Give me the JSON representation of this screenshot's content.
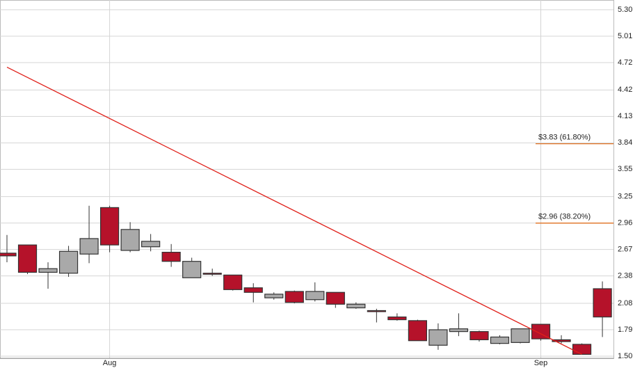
{
  "chart_data": {
    "type": "candlestick",
    "categories": [
      null,
      null,
      null,
      null,
      null,
      "Aug",
      null,
      null,
      null,
      null,
      null,
      null,
      null,
      null,
      null,
      null,
      null,
      null,
      null,
      null,
      null,
      null,
      null,
      null,
      null,
      null,
      "Sep",
      null,
      null,
      null
    ],
    "open": [
      2.63,
      2.72,
      2.42,
      2.41,
      2.62,
      3.13,
      2.66,
      2.7,
      2.64,
      2.36,
      2.41,
      2.39,
      2.25,
      2.14,
      2.21,
      2.12,
      2.2,
      2.03,
      2.0,
      1.93,
      1.89,
      1.62,
      1.77,
      1.77,
      1.64,
      1.65,
      1.85,
      1.68,
      1.63,
      2.24
    ],
    "high": [
      2.83,
      2.72,
      2.53,
      2.71,
      3.15,
      3.15,
      2.97,
      2.84,
      2.73,
      2.58,
      2.46,
      2.39,
      2.3,
      2.2,
      2.22,
      2.31,
      2.2,
      2.09,
      2.02,
      1.97,
      1.9,
      1.86,
      1.97,
      1.78,
      1.73,
      1.8,
      1.85,
      1.73,
      1.64,
      2.32
    ],
    "low": [
      2.53,
      2.4,
      2.24,
      2.37,
      2.52,
      2.64,
      2.64,
      2.65,
      2.48,
      2.36,
      2.38,
      2.22,
      2.09,
      2.12,
      2.08,
      2.1,
      2.03,
      2.02,
      1.87,
      1.89,
      1.67,
      1.57,
      1.72,
      1.66,
      1.63,
      1.64,
      1.67,
      1.64,
      1.52,
      1.71
    ],
    "close": [
      2.6,
      2.42,
      2.46,
      2.65,
      2.79,
      2.72,
      2.89,
      2.76,
      2.54,
      2.54,
      2.4,
      2.23,
      2.2,
      2.18,
      2.09,
      2.21,
      2.07,
      2.07,
      1.99,
      1.9,
      1.67,
      1.79,
      1.8,
      1.68,
      1.71,
      1.8,
      1.69,
      1.66,
      1.52,
      1.93
    ],
    "up_color": "#a9a9a9",
    "down_color": "#b5122a",
    "ylim": [
      1.5,
      5.3
    ],
    "yticks": [
      {
        "value": 5.3,
        "label": "5.30"
      },
      5.01,
      4.72,
      4.42,
      4.13,
      3.84,
      3.55,
      3.25,
      2.96,
      2.67,
      2.38,
      2.08,
      1.79,
      {
        "value": 1.5,
        "label": "1.50"
      }
    ],
    "grid": true,
    "trendline": {
      "start": 4.67,
      "end": 1.52,
      "start_index": 0,
      "end_index": 28,
      "color": "#e0201a"
    },
    "levels": [
      {
        "value": 3.83,
        "label": "$3.83 (61.80%)"
      },
      {
        "value": 2.96,
        "label": "$2.96 (38.20%)"
      }
    ],
    "level_color": "#e07020"
  }
}
